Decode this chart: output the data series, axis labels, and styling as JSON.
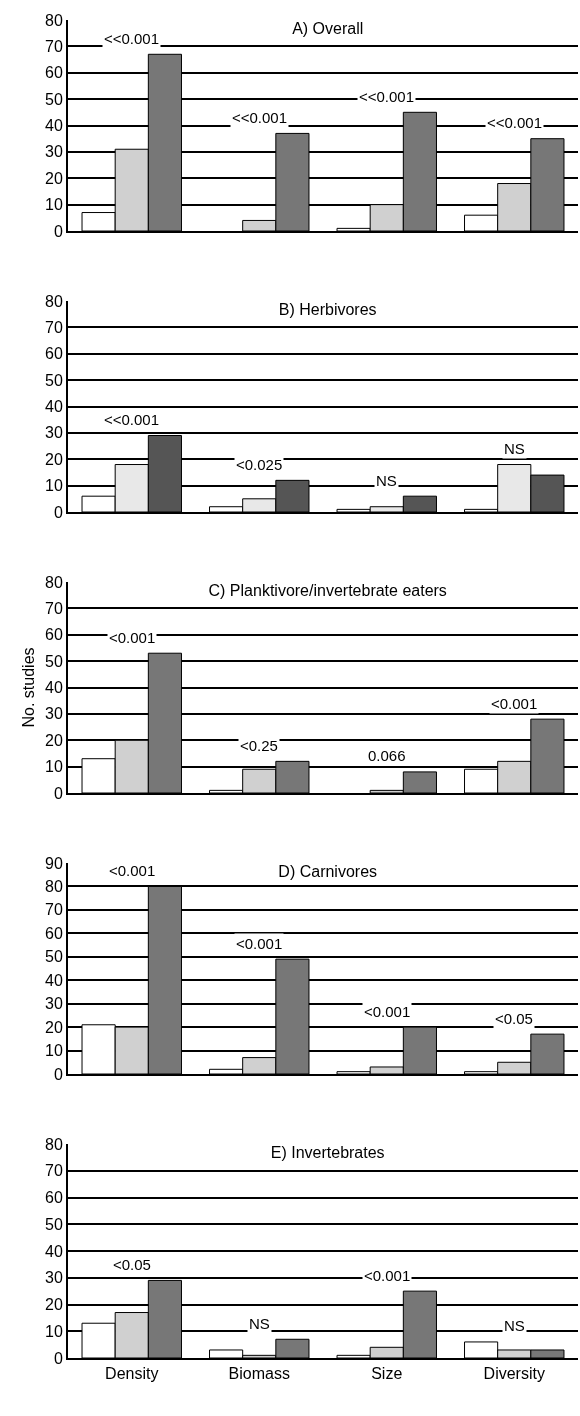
{
  "chart_data": [
    {
      "type": "bar",
      "title": "A) Overall",
      "categories": [
        null,
        null,
        null,
        null
      ],
      "series": [
        {
          "color": "#ffffff",
          "values": [
            7,
            0,
            1,
            6
          ]
        },
        {
          "color": "#d0d0d0",
          "values": [
            31,
            4,
            10,
            18
          ]
        },
        {
          "color": "#777777",
          "values": [
            67,
            37,
            45,
            35
          ]
        }
      ],
      "annotations": [
        "<<0.001",
        "<<0.001",
        "<<0.001",
        "<<0.001"
      ],
      "ylim": [
        0,
        80
      ],
      "yticks": [
        0,
        10,
        20,
        30,
        40,
        50,
        60,
        70,
        80
      ],
      "grid": "y",
      "tick_labels": "y"
    },
    {
      "type": "bar",
      "title": "B) Herbivores",
      "categories": [
        null,
        null,
        null,
        null
      ],
      "series": [
        {
          "color": "#ffffff",
          "values": [
            6,
            2,
            1,
            1
          ]
        },
        {
          "color": "#e8e8e8",
          "values": [
            18,
            5,
            2,
            18
          ]
        },
        {
          "color": "#555555",
          "values": [
            29,
            12,
            6,
            14
          ]
        }
      ],
      "annotations": [
        "<<0.001",
        "<0.025",
        "NS",
        "NS"
      ],
      "ylim": [
        0,
        80
      ],
      "yticks": [
        0,
        10,
        20,
        30,
        40,
        50,
        60,
        70,
        80
      ],
      "grid": "y",
      "tick_labels": "y"
    },
    {
      "type": "bar",
      "title": "C) Planktivore/invertebrate eaters",
      "ylabel": "No. studies",
      "categories": [
        null,
        null,
        null,
        null
      ],
      "series": [
        {
          "color": "#ffffff",
          "values": [
            13,
            1,
            0,
            9
          ]
        },
        {
          "color": "#d0d0d0",
          "values": [
            20,
            9,
            1,
            12
          ]
        },
        {
          "color": "#777777",
          "values": [
            53,
            12,
            8,
            28
          ]
        }
      ],
      "annotations": [
        "<0.001",
        "<0.25",
        "0.066",
        "<0.001"
      ],
      "ylim": [
        0,
        80
      ],
      "yticks": [
        0,
        10,
        20,
        30,
        40,
        50,
        60,
        70,
        80
      ],
      "grid": "y",
      "tick_labels": "y"
    },
    {
      "type": "bar",
      "title": "D) Carnivores",
      "categories": [
        null,
        null,
        null,
        null
      ],
      "series": [
        {
          "color": "#ffffff",
          "values": [
            21,
            2,
            1,
            1
          ]
        },
        {
          "color": "#d0d0d0",
          "values": [
            20,
            7,
            3,
            5
          ]
        },
        {
          "color": "#777777",
          "values": [
            80,
            49,
            20,
            17
          ]
        }
      ],
      "annotations": [
        "<0.001",
        "<0.001",
        "<0.001",
        "<0.05"
      ],
      "ylim": [
        0,
        90
      ],
      "yticks": [
        0,
        10,
        20,
        30,
        40,
        50,
        60,
        70,
        80,
        90
      ],
      "grid": "y",
      "tick_labels": "y"
    },
    {
      "type": "bar",
      "title": "E) Invertebrates",
      "categories": [
        "Density",
        "Biomass",
        "Size",
        "Diversity"
      ],
      "series": [
        {
          "color": "#ffffff",
          "values": [
            13,
            3,
            1,
            6
          ]
        },
        {
          "color": "#d0d0d0",
          "values": [
            17,
            1,
            4,
            3
          ]
        },
        {
          "color": "#777777",
          "values": [
            29,
            7,
            25,
            3
          ]
        }
      ],
      "annotations": [
        "<0.05",
        "NS",
        "<0.001",
        "NS"
      ],
      "ylim": [
        0,
        80
      ],
      "yticks": [
        0,
        10,
        20,
        30,
        40,
        50,
        60,
        70,
        80
      ],
      "grid": "y"
    }
  ]
}
